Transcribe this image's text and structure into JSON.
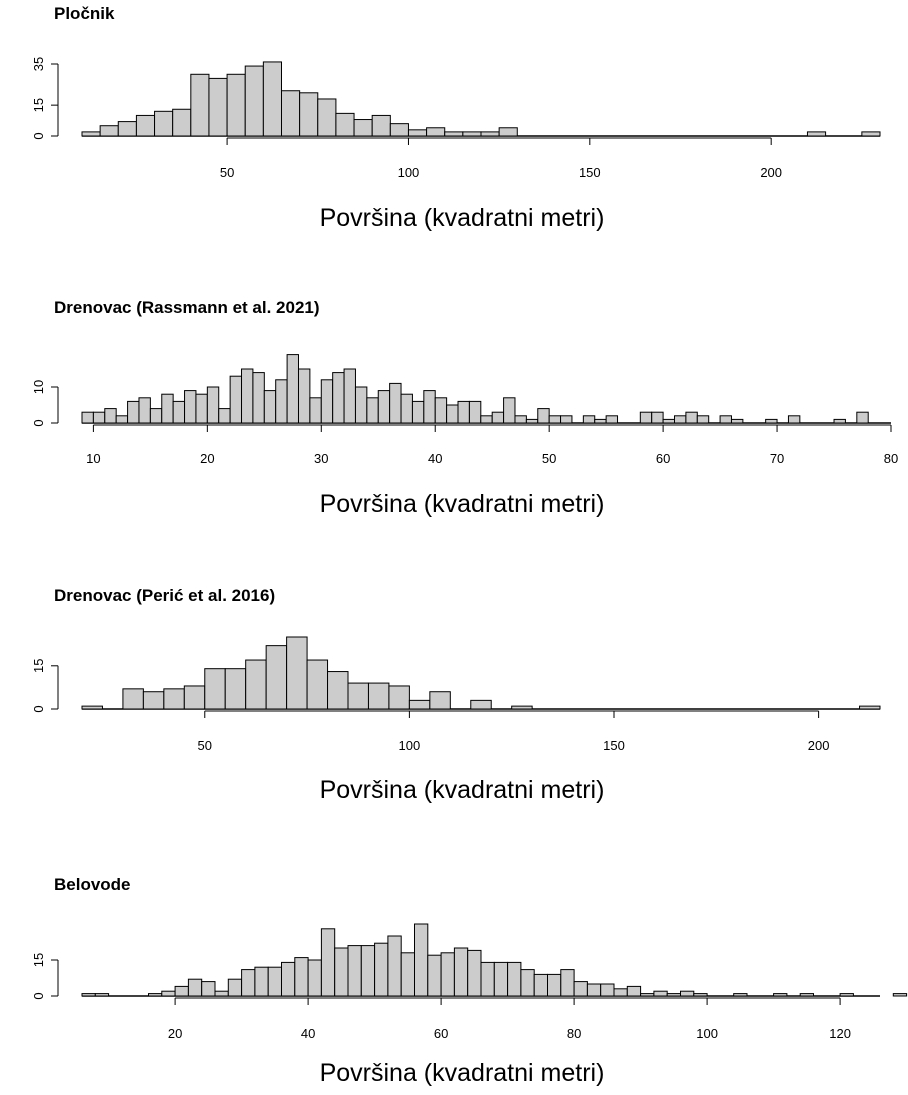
{
  "chart_data": [
    {
      "type": "bar",
      "title": "Pločnik",
      "xlabel": "Površina (kvadratni metri)",
      "ylabel": "",
      "bin_width": 5,
      "bin_start": 10,
      "x_ticks": [
        50,
        100,
        150,
        200
      ],
      "y_ticks": [
        0,
        15,
        35
      ],
      "xlim": [
        10,
        230
      ],
      "ylim": [
        0,
        35
      ],
      "values": [
        2,
        5,
        7,
        10,
        12,
        13,
        30,
        28,
        30,
        34,
        36,
        22,
        21,
        18,
        11,
        8,
        10,
        6,
        3,
        4,
        2,
        2,
        2,
        4,
        0,
        0,
        0,
        0,
        0,
        0,
        0,
        0,
        0,
        0,
        0,
        0,
        0,
        0,
        0,
        0,
        2,
        0,
        0,
        2
      ]
    },
    {
      "type": "bar",
      "title": "Drenovac (Rassmann et al. 2021)",
      "xlabel": "Površina (kvadratni metri)",
      "ylabel": "",
      "bin_width": 1,
      "bin_start": 9,
      "x_ticks": [
        10,
        20,
        30,
        40,
        50,
        60,
        70,
        80
      ],
      "y_ticks": [
        0,
        10
      ],
      "xlim": [
        9,
        80
      ],
      "ylim": [
        0,
        20
      ],
      "values": [
        3,
        3,
        4,
        2,
        6,
        7,
        4,
        8,
        6,
        9,
        8,
        10,
        4,
        13,
        15,
        14,
        9,
        12,
        19,
        15,
        7,
        12,
        14,
        15,
        10,
        7,
        9,
        11,
        8,
        6,
        9,
        7,
        5,
        6,
        6,
        2,
        3,
        7,
        2,
        1,
        4,
        2,
        2,
        0,
        2,
        1,
        2,
        0,
        0,
        3,
        3,
        1,
        2,
        3,
        2,
        0,
        2,
        1,
        0,
        0,
        1,
        0,
        2,
        0,
        0,
        0,
        1,
        0,
        3,
        0
      ]
    },
    {
      "type": "bar",
      "title": "Drenovac (Perić et al. 2016)",
      "xlabel": "Površina (kvadratni metri)",
      "ylabel": "",
      "bin_width": 5,
      "bin_start": 20,
      "x_ticks": [
        50,
        100,
        150,
        200
      ],
      "y_ticks": [
        0,
        15
      ],
      "xlim": [
        20,
        215
      ],
      "ylim": [
        0,
        25
      ],
      "values": [
        1,
        0,
        7,
        6,
        7,
        8,
        14,
        14,
        17,
        22,
        25,
        17,
        13,
        9,
        9,
        8,
        3,
        6,
        0,
        3,
        0,
        1,
        0,
        0,
        0,
        0,
        0,
        0,
        0,
        0,
        0,
        0,
        0,
        0,
        0,
        0,
        0,
        0,
        1
      ]
    },
    {
      "type": "bar",
      "title": "Belovode",
      "xlabel": "Površina (kvadratni metri)",
      "ylabel": "",
      "bin_width": 2,
      "bin_start": 6,
      "x_ticks": [
        20,
        40,
        60,
        80,
        100,
        120
      ],
      "y_ticks": [
        0,
        15
      ],
      "xlim": [
        6,
        126
      ],
      "ylim": [
        0,
        30
      ],
      "values": [
        1,
        1,
        0,
        0,
        0,
        1,
        2,
        4,
        7,
        6,
        2,
        7,
        11,
        12,
        12,
        14,
        16,
        15,
        28,
        20,
        21,
        21,
        22,
        25,
        18,
        30,
        17,
        18,
        20,
        19,
        14,
        14,
        14,
        11,
        9,
        9,
        11,
        6,
        5,
        5,
        3,
        4,
        1,
        2,
        1,
        2,
        1,
        0,
        0,
        1,
        0,
        0,
        1,
        0,
        1,
        0,
        0,
        1,
        0,
        0,
        0,
        1
      ]
    }
  ]
}
